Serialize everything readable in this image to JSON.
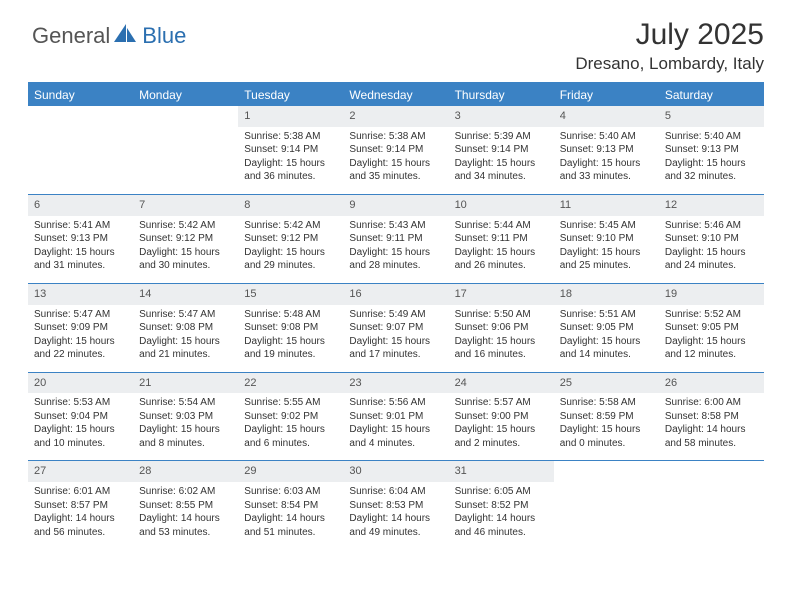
{
  "brand": {
    "part1": "General",
    "part2": "Blue"
  },
  "title": "July 2025",
  "location": "Dresano, Lombardy, Italy",
  "colors": {
    "header_bg": "#3b82c4",
    "header_text": "#ffffff",
    "daynum_bg": "#eceef0",
    "rule": "#3b82c4",
    "text": "#333333",
    "brand_gray": "#555555",
    "brand_blue": "#2b6fb0",
    "white": "#ffffff"
  },
  "typography": {
    "title_size": 30,
    "location_size": 17,
    "weekday_size": 12,
    "daynum_size": 11,
    "body_size": 10
  },
  "weekdays": [
    "Sunday",
    "Monday",
    "Tuesday",
    "Wednesday",
    "Thursday",
    "Friday",
    "Saturday"
  ],
  "weeks": [
    [
      null,
      null,
      {
        "n": "1",
        "sr": "5:38 AM",
        "ss": "9:14 PM",
        "dl": "15 hours and 36 minutes."
      },
      {
        "n": "2",
        "sr": "5:38 AM",
        "ss": "9:14 PM",
        "dl": "15 hours and 35 minutes."
      },
      {
        "n": "3",
        "sr": "5:39 AM",
        "ss": "9:14 PM",
        "dl": "15 hours and 34 minutes."
      },
      {
        "n": "4",
        "sr": "5:40 AM",
        "ss": "9:13 PM",
        "dl": "15 hours and 33 minutes."
      },
      {
        "n": "5",
        "sr": "5:40 AM",
        "ss": "9:13 PM",
        "dl": "15 hours and 32 minutes."
      }
    ],
    [
      {
        "n": "6",
        "sr": "5:41 AM",
        "ss": "9:13 PM",
        "dl": "15 hours and 31 minutes."
      },
      {
        "n": "7",
        "sr": "5:42 AM",
        "ss": "9:12 PM",
        "dl": "15 hours and 30 minutes."
      },
      {
        "n": "8",
        "sr": "5:42 AM",
        "ss": "9:12 PM",
        "dl": "15 hours and 29 minutes."
      },
      {
        "n": "9",
        "sr": "5:43 AM",
        "ss": "9:11 PM",
        "dl": "15 hours and 28 minutes."
      },
      {
        "n": "10",
        "sr": "5:44 AM",
        "ss": "9:11 PM",
        "dl": "15 hours and 26 minutes."
      },
      {
        "n": "11",
        "sr": "5:45 AM",
        "ss": "9:10 PM",
        "dl": "15 hours and 25 minutes."
      },
      {
        "n": "12",
        "sr": "5:46 AM",
        "ss": "9:10 PM",
        "dl": "15 hours and 24 minutes."
      }
    ],
    [
      {
        "n": "13",
        "sr": "5:47 AM",
        "ss": "9:09 PM",
        "dl": "15 hours and 22 minutes."
      },
      {
        "n": "14",
        "sr": "5:47 AM",
        "ss": "9:08 PM",
        "dl": "15 hours and 21 minutes."
      },
      {
        "n": "15",
        "sr": "5:48 AM",
        "ss": "9:08 PM",
        "dl": "15 hours and 19 minutes."
      },
      {
        "n": "16",
        "sr": "5:49 AM",
        "ss": "9:07 PM",
        "dl": "15 hours and 17 minutes."
      },
      {
        "n": "17",
        "sr": "5:50 AM",
        "ss": "9:06 PM",
        "dl": "15 hours and 16 minutes."
      },
      {
        "n": "18",
        "sr": "5:51 AM",
        "ss": "9:05 PM",
        "dl": "15 hours and 14 minutes."
      },
      {
        "n": "19",
        "sr": "5:52 AM",
        "ss": "9:05 PM",
        "dl": "15 hours and 12 minutes."
      }
    ],
    [
      {
        "n": "20",
        "sr": "5:53 AM",
        "ss": "9:04 PM",
        "dl": "15 hours and 10 minutes."
      },
      {
        "n": "21",
        "sr": "5:54 AM",
        "ss": "9:03 PM",
        "dl": "15 hours and 8 minutes."
      },
      {
        "n": "22",
        "sr": "5:55 AM",
        "ss": "9:02 PM",
        "dl": "15 hours and 6 minutes."
      },
      {
        "n": "23",
        "sr": "5:56 AM",
        "ss": "9:01 PM",
        "dl": "15 hours and 4 minutes."
      },
      {
        "n": "24",
        "sr": "5:57 AM",
        "ss": "9:00 PM",
        "dl": "15 hours and 2 minutes."
      },
      {
        "n": "25",
        "sr": "5:58 AM",
        "ss": "8:59 PM",
        "dl": "15 hours and 0 minutes."
      },
      {
        "n": "26",
        "sr": "6:00 AM",
        "ss": "8:58 PM",
        "dl": "14 hours and 58 minutes."
      }
    ],
    [
      {
        "n": "27",
        "sr": "6:01 AM",
        "ss": "8:57 PM",
        "dl": "14 hours and 56 minutes."
      },
      {
        "n": "28",
        "sr": "6:02 AM",
        "ss": "8:55 PM",
        "dl": "14 hours and 53 minutes."
      },
      {
        "n": "29",
        "sr": "6:03 AM",
        "ss": "8:54 PM",
        "dl": "14 hours and 51 minutes."
      },
      {
        "n": "30",
        "sr": "6:04 AM",
        "ss": "8:53 PM",
        "dl": "14 hours and 49 minutes."
      },
      {
        "n": "31",
        "sr": "6:05 AM",
        "ss": "8:52 PM",
        "dl": "14 hours and 46 minutes."
      },
      null,
      null
    ]
  ],
  "labels": {
    "sunrise": "Sunrise: ",
    "sunset": "Sunset: ",
    "daylight": "Daylight: "
  }
}
